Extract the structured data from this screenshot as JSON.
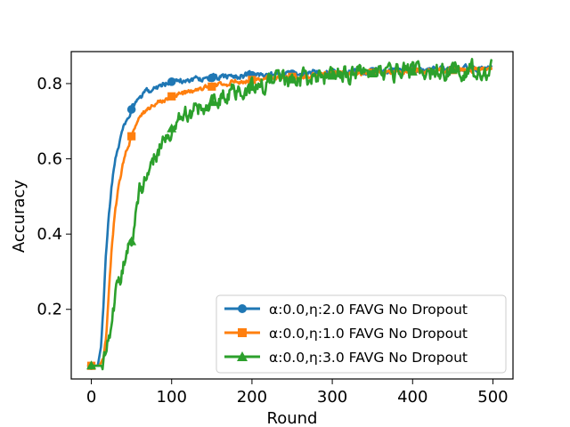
{
  "chart_data": {
    "type": "line",
    "title": "",
    "xlabel": "Round",
    "ylabel": "Accuracy",
    "xlim": [
      -25,
      525
    ],
    "ylim": [
      0.015,
      0.885
    ],
    "xticks": [
      0,
      100,
      200,
      300,
      400,
      500
    ],
    "xtick_labels": [
      "0",
      "100",
      "200",
      "300",
      "400",
      "500"
    ],
    "yticks": [
      0.2,
      0.4,
      0.6,
      0.8
    ],
    "ytick_labels": [
      "0.2",
      "0.4",
      "0.6",
      "0.8"
    ],
    "grid": false,
    "legend_position": "lower-right",
    "series": [
      {
        "name": "α:0.0,η:2.0 FAVG No Dropout",
        "color": "#1f77b4",
        "marker": "circle",
        "points": [
          [
            0,
            0.05
          ],
          [
            8,
            0.05
          ],
          [
            12,
            0.1
          ],
          [
            15,
            0.2
          ],
          [
            18,
            0.34
          ],
          [
            22,
            0.46
          ],
          [
            27,
            0.56
          ],
          [
            32,
            0.62
          ],
          [
            38,
            0.67
          ],
          [
            45,
            0.71
          ],
          [
            52,
            0.74
          ],
          [
            60,
            0.76
          ],
          [
            70,
            0.78
          ],
          [
            80,
            0.79
          ],
          [
            90,
            0.8
          ],
          [
            100,
            0.805
          ],
          [
            120,
            0.81
          ],
          [
            150,
            0.815
          ],
          [
            180,
            0.82
          ],
          [
            210,
            0.823
          ],
          [
            250,
            0.826
          ],
          [
            300,
            0.83
          ],
          [
            350,
            0.833
          ],
          [
            400,
            0.836
          ],
          [
            450,
            0.839
          ],
          [
            498,
            0.842
          ]
        ]
      },
      {
        "name": "α:0.0,η:1.0 FAVG No Dropout",
        "color": "#ff7f0e",
        "marker": "square",
        "points": [
          [
            0,
            0.05
          ],
          [
            10,
            0.05
          ],
          [
            15,
            0.07
          ],
          [
            19,
            0.14
          ],
          [
            22,
            0.26
          ],
          [
            26,
            0.38
          ],
          [
            30,
            0.47
          ],
          [
            35,
            0.54
          ],
          [
            42,
            0.61
          ],
          [
            50,
            0.66
          ],
          [
            58,
            0.7
          ],
          [
            65,
            0.72
          ],
          [
            75,
            0.74
          ],
          [
            85,
            0.755
          ],
          [
            100,
            0.766
          ],
          [
            120,
            0.778
          ],
          [
            150,
            0.792
          ],
          [
            180,
            0.805
          ],
          [
            210,
            0.812
          ],
          [
            250,
            0.818
          ],
          [
            300,
            0.824
          ],
          [
            350,
            0.829
          ],
          [
            400,
            0.833
          ],
          [
            450,
            0.836
          ],
          [
            498,
            0.838
          ]
        ]
      },
      {
        "name": "α:0.0,η:3.0 FAVG No Dropout",
        "color": "#2ca02c",
        "marker": "triangle",
        "points": [
          [
            0,
            0.05
          ],
          [
            15,
            0.05
          ],
          [
            20,
            0.1
          ],
          [
            25,
            0.17
          ],
          [
            30,
            0.23
          ],
          [
            35,
            0.28
          ],
          [
            40,
            0.32
          ],
          [
            45,
            0.36
          ],
          [
            50,
            0.38
          ],
          [
            55,
            0.45
          ],
          [
            60,
            0.51
          ],
          [
            70,
            0.56
          ],
          [
            80,
            0.61
          ],
          [
            90,
            0.65
          ],
          [
            100,
            0.68
          ],
          [
            110,
            0.7
          ],
          [
            120,
            0.72
          ],
          [
            140,
            0.74
          ],
          [
            160,
            0.76
          ],
          [
            180,
            0.78
          ],
          [
            200,
            0.79
          ],
          [
            220,
            0.8
          ],
          [
            250,
            0.81
          ],
          [
            300,
            0.82
          ],
          [
            350,
            0.826
          ],
          [
            400,
            0.831
          ],
          [
            450,
            0.836
          ],
          [
            498,
            0.835
          ]
        ]
      }
    ],
    "markers_at": [
      0,
      50,
      100,
      150,
      200,
      250,
      300,
      350,
      400,
      450
    ]
  }
}
